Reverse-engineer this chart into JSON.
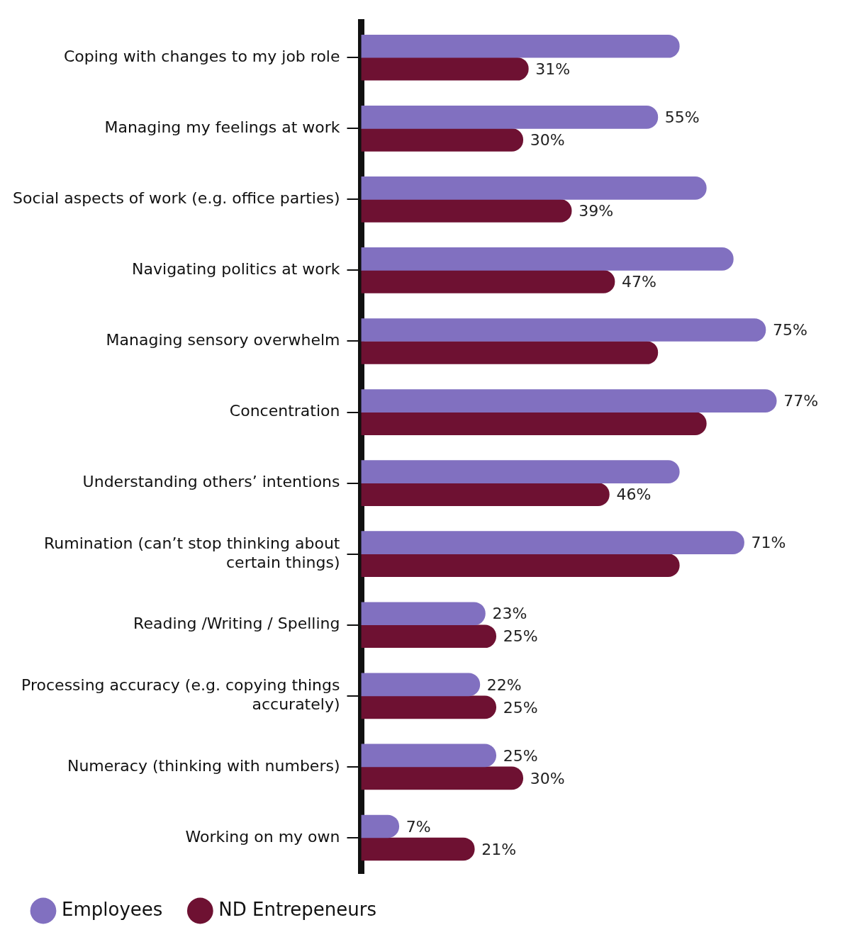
{
  "chart_data": {
    "type": "bar",
    "orientation": "horizontal",
    "categories": [
      "Coping with changes to my job role",
      "Managing my feelings at work",
      "Social aspects of work (e.g. office parties)",
      "Navigating politics at work",
      "Managing sensory overwhelm",
      "Concentration",
      "Understanding others’ intentions",
      "Rumination (can’t stop thinking about certain things)",
      "Reading /Writing / Spelling",
      "Processing accuracy (e.g. copying things accurately)",
      "Numeracy (thinking with numbers)",
      "Working on my own"
    ],
    "series": [
      {
        "name": "Employees",
        "color": "#8170c0",
        "values": [
          59,
          55,
          64,
          69,
          75,
          77,
          59,
          71,
          23,
          22,
          25,
          7
        ],
        "value_labels": [
          null,
          "55%",
          null,
          null,
          "75%",
          "77%",
          null,
          "71%",
          "23%",
          "22%",
          "25%",
          "7%"
        ]
      },
      {
        "name": "ND Entrepeneurs",
        "color": "#6e1132",
        "values": [
          31,
          30,
          39,
          47,
          55,
          64,
          46,
          59,
          25,
          25,
          30,
          21
        ],
        "value_labels": [
          "31%",
          "30%",
          "39%",
          "47%",
          null,
          null,
          "46%",
          null,
          "25%",
          "25%",
          "30%",
          "21%"
        ]
      }
    ],
    "tick_labels": "y",
    "legend": "bottom left"
  }
}
